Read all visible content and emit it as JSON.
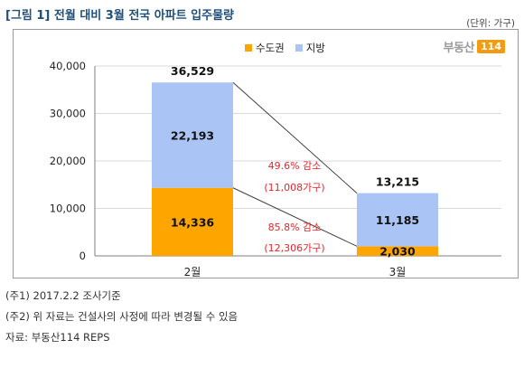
{
  "header": {
    "title": "[그림 1] 전월 대비 3월 전국 아파트 입주물량",
    "unit": "(단위: 가구)"
  },
  "logo": {
    "text": "부동산",
    "num": "114"
  },
  "colors": {
    "capital": "#FFA500",
    "local": "#A9C4F5",
    "decrease": "#E8242A",
    "axis": "#7F7F7F",
    "grid": "#D9D9D9",
    "connector": "#404040"
  },
  "chart_data": {
    "type": "bar",
    "stacked": true,
    "categories": [
      "2월",
      "3월"
    ],
    "series": [
      {
        "name": "수도권",
        "values": [
          14336,
          2030
        ]
      },
      {
        "name": "지방",
        "values": [
          22193,
          11185
        ]
      }
    ],
    "totals": [
      36529,
      13215
    ],
    "yticks": [
      "0",
      "10,000",
      "20,000",
      "30,000",
      "40,000"
    ],
    "ylim": [
      0,
      40000
    ],
    "grid": true,
    "legend": "top-center",
    "labels": {
      "capital": [
        "14,336",
        "2,030"
      ],
      "local": [
        "22,193",
        "11,185"
      ],
      "total": [
        "36,529",
        "13,215"
      ]
    },
    "annotations": {
      "total_line1": "49.6% 감소",
      "total_line2": "(11,008가구)",
      "capital_line1": "85.8% 감소",
      "capital_line2": "(12,306가구)"
    }
  },
  "notes": [
    "(주1) 2017.2.2  조사기준",
    "(주2) 위 자료는 건설사의 사정에 따라 변경될 수 있음",
    "자료: 부동산114  REPS"
  ]
}
